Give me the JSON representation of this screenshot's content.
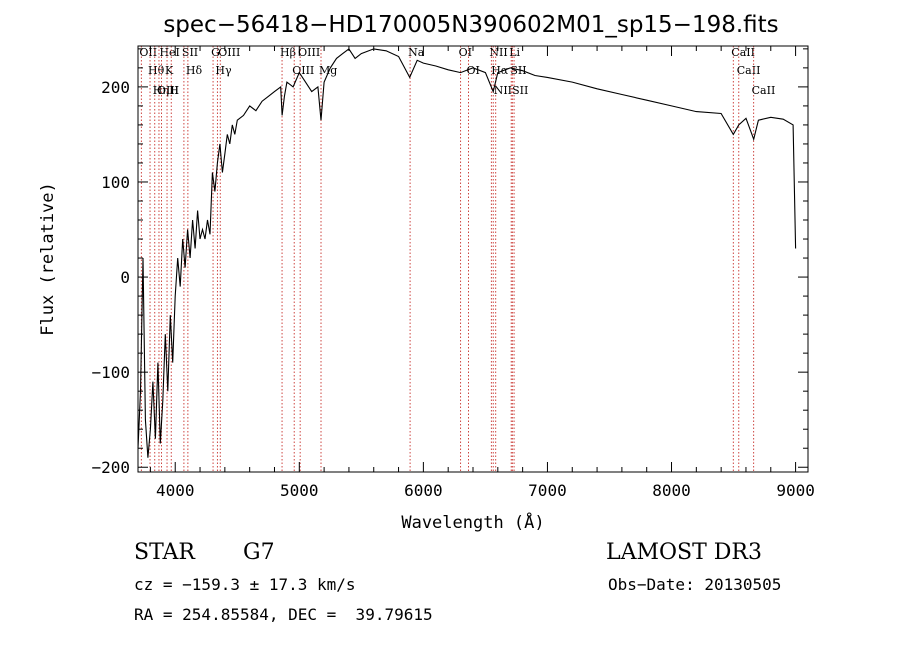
{
  "chart_data": {
    "type": "line",
    "title": "spec−56418−HD170005N390602M01_sp15−198.fits",
    "xlabel": "Wavelength (Å)",
    "ylabel": "Flux (relative)",
    "xlim": [
      3700,
      9100
    ],
    "ylim": [
      -205,
      243
    ],
    "x_ticks": [
      4000,
      5000,
      6000,
      7000,
      8000,
      9000
    ],
    "y_ticks": [
      -200,
      -100,
      0,
      100,
      200
    ],
    "x_tick_labels": [
      "4000",
      "5000",
      "6000",
      "7000",
      "8000",
      "9000"
    ],
    "y_tick_labels": [
      "−200",
      "−100",
      "0",
      "100",
      "200"
    ],
    "series": [
      {
        "name": "spectrum",
        "color": "#000000",
        "x": [
          3700,
          3720,
          3740,
          3760,
          3780,
          3800,
          3820,
          3840,
          3860,
          3880,
          3900,
          3920,
          3940,
          3960,
          3980,
          4000,
          4020,
          4040,
          4060,
          4080,
          4100,
          4120,
          4140,
          4160,
          4180,
          4200,
          4220,
          4240,
          4260,
          4280,
          4300,
          4320,
          4340,
          4360,
          4380,
          4400,
          4420,
          4440,
          4460,
          4480,
          4500,
          4550,
          4600,
          4650,
          4700,
          4750,
          4800,
          4850,
          4861,
          4880,
          4900,
          4950,
          5000,
          5050,
          5100,
          5150,
          5175,
          5200,
          5250,
          5300,
          5350,
          5400,
          5450,
          5500,
          5600,
          5700,
          5800,
          5890,
          5950,
          6000,
          6100,
          6200,
          6300,
          6400,
          6500,
          6563,
          6600,
          6700,
          6800,
          6900,
          7000,
          7200,
          7400,
          7600,
          7800,
          8000,
          8200,
          8400,
          8498,
          8542,
          8600,
          8662,
          8700,
          8800,
          8900,
          8980,
          9000
        ],
        "values": [
          -180,
          -120,
          20,
          -150,
          -190,
          -160,
          -110,
          -170,
          -90,
          -175,
          -130,
          -60,
          -120,
          -40,
          -90,
          -20,
          20,
          -10,
          40,
          10,
          50,
          20,
          60,
          30,
          70,
          40,
          50,
          40,
          60,
          45,
          110,
          90,
          120,
          140,
          110,
          130,
          150,
          140,
          160,
          150,
          165,
          170,
          180,
          175,
          185,
          190,
          195,
          200,
          170,
          190,
          205,
          200,
          215,
          205,
          195,
          200,
          165,
          205,
          220,
          230,
          235,
          240,
          230,
          235,
          240,
          238,
          232,
          210,
          228,
          225,
          222,
          218,
          215,
          220,
          215,
          195,
          215,
          220,
          217,
          212,
          210,
          205,
          198,
          192,
          186,
          180,
          174,
          172,
          150,
          160,
          167,
          145,
          165,
          168,
          166,
          160,
          30
        ]
      }
    ],
    "line_markers": [
      {
        "label": "Hθ",
        "x": 3797
      },
      {
        "label": "OII",
        "x": 3727
      },
      {
        "label": "OIII",
        "x": 3869
      },
      {
        "label": "HeI",
        "x": 3889
      },
      {
        "label": "Hη",
        "x": 3835
      },
      {
        "label": "K",
        "x": 3934
      },
      {
        "label": "H",
        "x": 3968
      },
      {
        "label": "SII",
        "x": 4070
      },
      {
        "label": "Hδ",
        "x": 4102
      },
      {
        "label": "OIII",
        "x": 4363
      },
      {
        "label": "Hγ",
        "x": 4340
      },
      {
        "label": "G",
        "x": 4305
      },
      {
        "label": "OIII",
        "x": 5007
      },
      {
        "label": "OIII",
        "x": 4959
      },
      {
        "label": "Hβ",
        "x": 4861
      },
      {
        "label": "Mg",
        "x": 5175
      },
      {
        "label": "Na",
        "x": 5893
      },
      {
        "label": "OI",
        "x": 6300
      },
      {
        "label": "OI",
        "x": 6364
      },
      {
        "label": "Hα",
        "x": 6563
      },
      {
        "label": "NII",
        "x": 6548
      },
      {
        "label": "NII",
        "x": 6583
      },
      {
        "label": "SII",
        "x": 6717
      },
      {
        "label": "SII",
        "x": 6731
      },
      {
        "label": "Li",
        "x": 6708
      },
      {
        "label": "CaII",
        "x": 8498
      },
      {
        "label": "CaII",
        "x": 8542
      },
      {
        "label": "CaII",
        "x": 8662
      }
    ]
  },
  "info": {
    "class_label": "STAR",
    "subclass": "G7",
    "survey": "LAMOST DR3",
    "cz": "cz = −159.3 ± 17.3 km/s",
    "obs_date": "Obs−Date: 20130505",
    "coords": "RA = 254.85584, DEC =  39.79615"
  },
  "colors": {
    "marker_line": "#c8322d",
    "spectrum": "#000000"
  }
}
